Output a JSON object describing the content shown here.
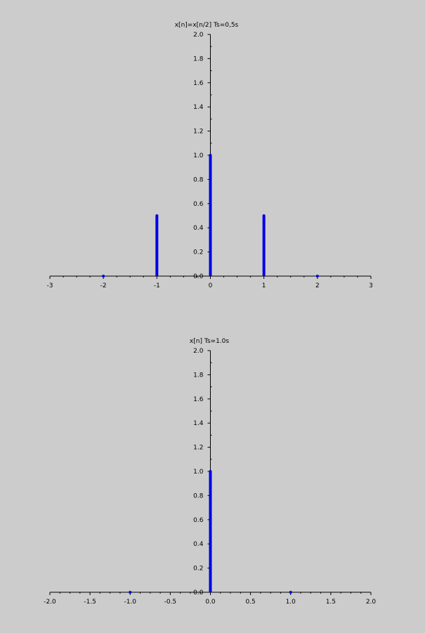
{
  "chart_data": [
    {
      "type": "stem",
      "title": "x[n]=x[n/2]    Ts=0,5s",
      "xlim": [
        -3,
        3
      ],
      "ylim": [
        0,
        2
      ],
      "x_ticks": [
        -3,
        -2,
        -1,
        0,
        1,
        2,
        3
      ],
      "x_tick_labels": [
        "-3",
        "-2",
        "-1",
        "0",
        "1",
        "2",
        "3"
      ],
      "y_ticks": [
        0,
        0.2,
        0.4,
        0.6,
        0.8,
        1.0,
        1.2,
        1.4,
        1.6,
        1.8,
        2.0
      ],
      "y_tick_labels": [
        "0.0",
        "0.2",
        "0.4",
        "0.6",
        "0.8",
        "1.0",
        "1.2",
        "1.4",
        "1.6",
        "1.8",
        "2.0"
      ],
      "x": [
        -2,
        -1,
        0,
        1,
        2
      ],
      "values": [
        0,
        0.5,
        1.0,
        0.5,
        0
      ],
      "color": "#0000e6",
      "grid": false
    },
    {
      "type": "stem",
      "title": "x[n]    Ts=1.0s",
      "xlim": [
        -2,
        2
      ],
      "ylim": [
        0,
        2
      ],
      "x_ticks": [
        -2,
        -1.5,
        -1,
        -0.5,
        0,
        0.5,
        1,
        1.5,
        2
      ],
      "x_tick_labels": [
        "-2.0",
        "-1.5",
        "-1.0",
        "-0.5",
        "0.0",
        "0.5",
        "1.0",
        "1.5",
        "2.0"
      ],
      "y_ticks": [
        0,
        0.2,
        0.4,
        0.6,
        0.8,
        1.0,
        1.2,
        1.4,
        1.6,
        1.8,
        2.0
      ],
      "y_tick_labels": [
        "0.0",
        "0.2",
        "0.4",
        "0.6",
        "0.8",
        "1.0",
        "1.2",
        "1.4",
        "1.6",
        "1.8",
        "2.0"
      ],
      "x": [
        -1,
        0,
        1
      ],
      "values": [
        0,
        1.0,
        0
      ],
      "color": "#0000e6",
      "grid": false
    }
  ]
}
